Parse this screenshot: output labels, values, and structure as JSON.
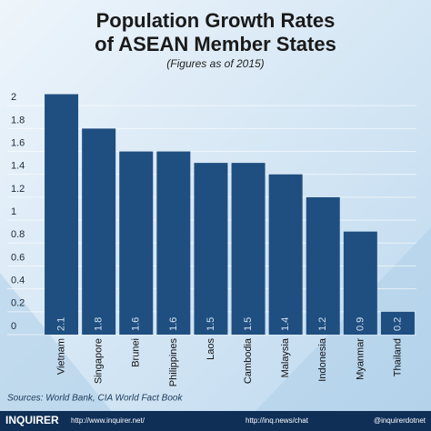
{
  "chart_data": {
    "type": "bar",
    "title": "Population Growth Rates",
    "title_line2": "of ASEAN Member States",
    "subtitle": "(Figures as of 2015)",
    "categories": [
      "Vietnam",
      "Singapore",
      "Brunei",
      "Philippines",
      "Laos",
      "Cambodia",
      "Malaysia",
      "Indonesia",
      "Myanmar",
      "Thailand"
    ],
    "values": [
      2.1,
      1.8,
      1.6,
      1.6,
      1.5,
      1.5,
      1.4,
      1.2,
      0.9,
      0.2
    ],
    "color": "#1f4f80",
    "ylim": [
      0,
      2.2
    ],
    "yticks": [
      0,
      0.2,
      0.4,
      0.6,
      0.8,
      1,
      1.2,
      1.4,
      1.6,
      1.8,
      2
    ],
    "grid": true,
    "source": "Sources: World Bank, CIA World Fact Book"
  },
  "footer": {
    "brand": "INQUIRER",
    "site": "http://www.inquirer.net/",
    "chat": "http://inq.news/chat",
    "handle": "@inquirerdotnet"
  }
}
